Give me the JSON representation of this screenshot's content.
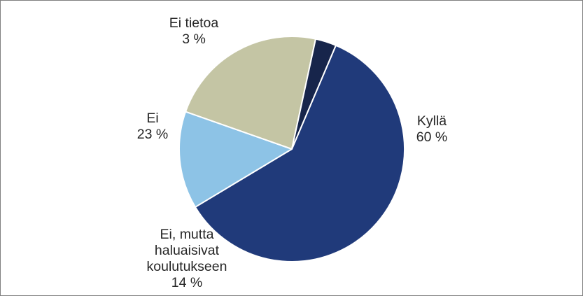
{
  "chart_data": {
    "type": "pie",
    "title": "",
    "slices": [
      {
        "label": "Kyllä",
        "value": 60,
        "value_label": "60 %",
        "color": "#203A7A"
      },
      {
        "label": "Ei, mutta haluaisivat koulutukseen",
        "label_lines": [
          "Ei, mutta",
          "haluaisivat",
          "koulutukseen"
        ],
        "value": 14,
        "value_label": "14 %",
        "color": "#8DC3E6"
      },
      {
        "label": "Ei",
        "value": 23,
        "value_label": "23 %",
        "color": "#C4C5A4"
      },
      {
        "label": "Ei tietoa",
        "value": 3,
        "value_label": "3 %",
        "color": "#17254B"
      }
    ],
    "legend": "none",
    "data_labels": "outside"
  }
}
